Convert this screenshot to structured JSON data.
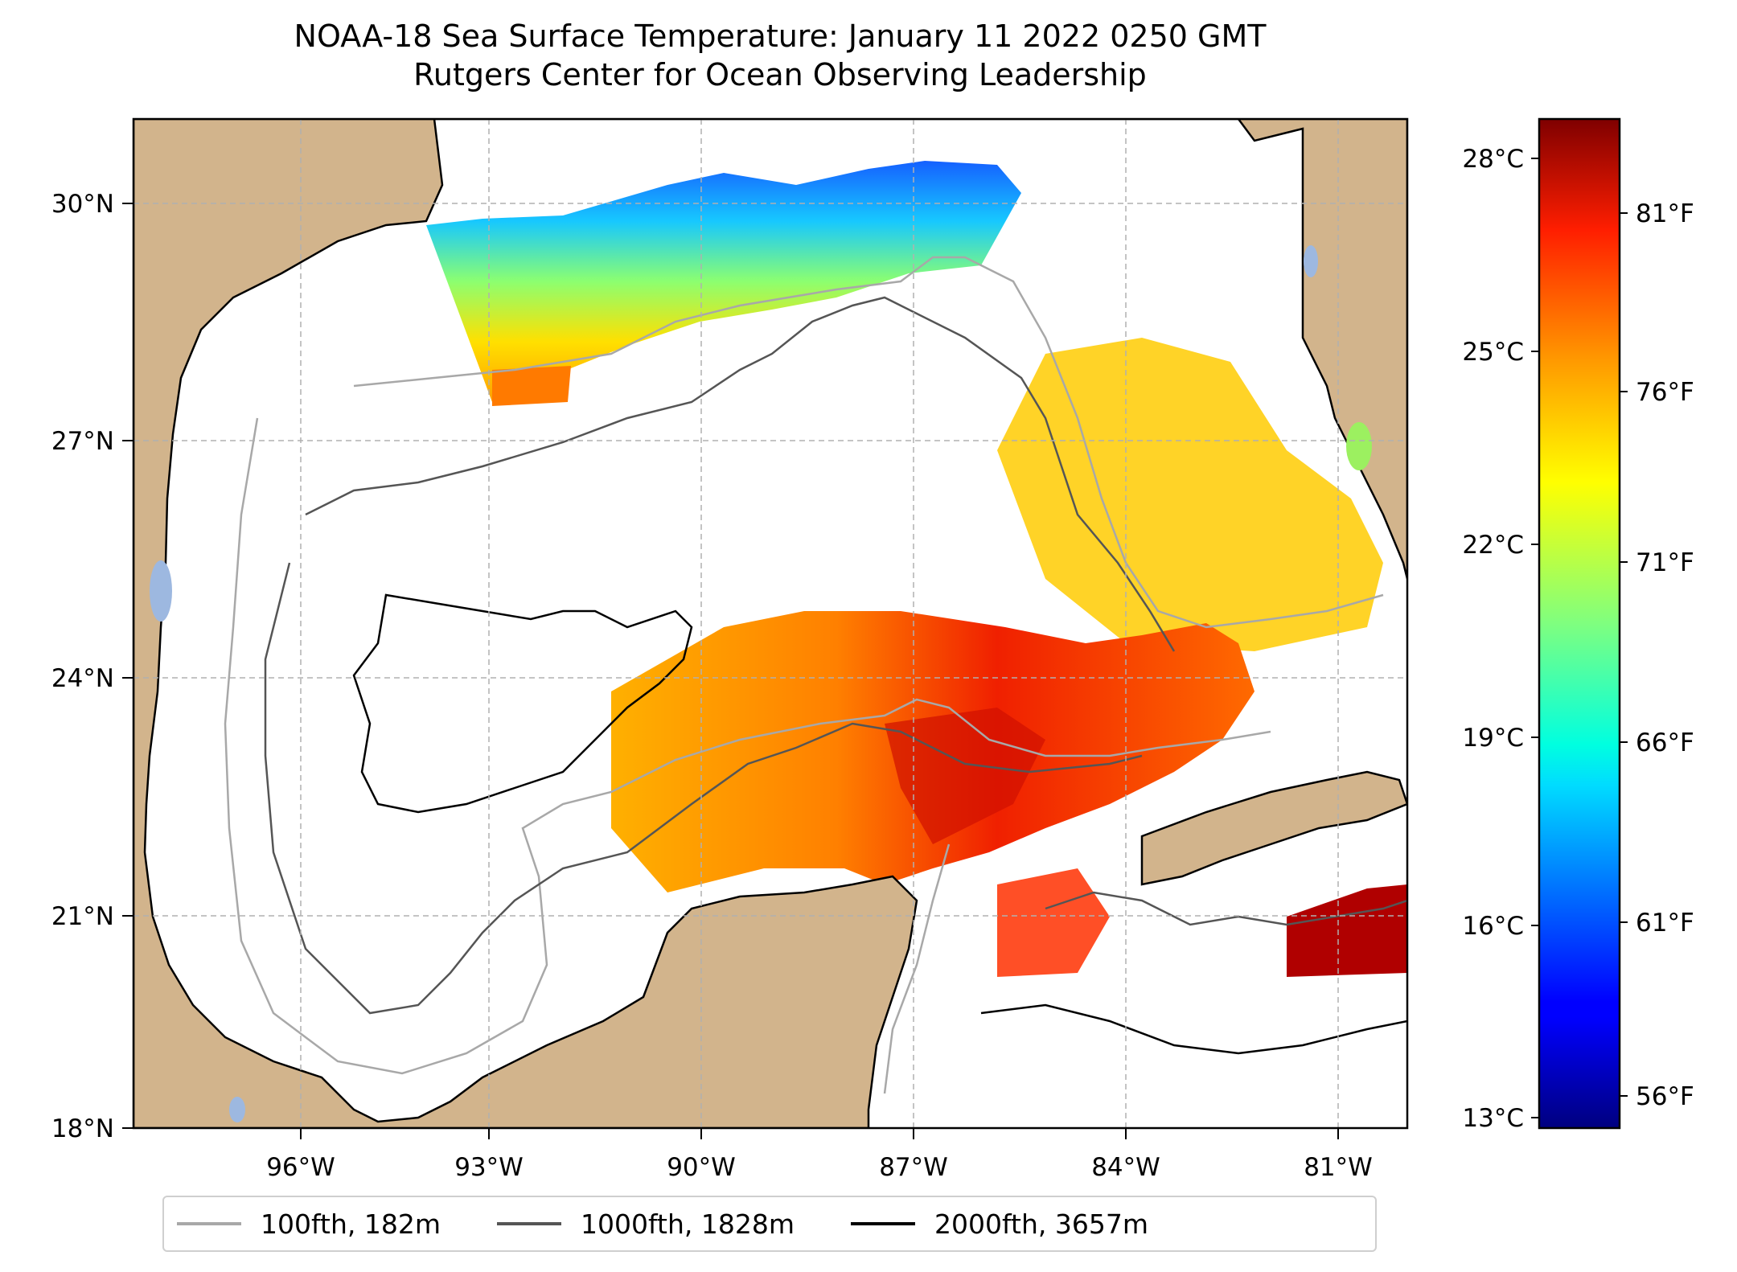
{
  "header": {
    "title": "NOAA-18 Sea Surface Temperature: January 11 2022 0250 GMT",
    "subtitle": "Rutgers Center for Ocean Observing Leadership"
  },
  "map": {
    "region": "Gulf of Mexico",
    "lon_range": [
      -98.2,
      -79.7
    ],
    "lat_range": [
      18,
      31
    ],
    "lat_ticks": [
      "30°N",
      "27°N",
      "24°N",
      "21°N",
      "18°N"
    ],
    "lon_ticks": [
      "96°W",
      "93°W",
      "90°W",
      "87°W",
      "84°W",
      "81°W"
    ],
    "colors": {
      "land": "#d2b48c",
      "ocean": "#ffffff",
      "lakes": "#9db8e0",
      "grid": "#b0b0b0"
    }
  },
  "colorbar": {
    "colormap": "jet",
    "celsius_ticks": [
      "28°C",
      "25°C",
      "22°C",
      "19°C",
      "16°C",
      "13°C"
    ],
    "fahrenheit_ticks": [
      "81°F",
      "76°F",
      "71°F",
      "66°F",
      "61°F",
      "56°F"
    ]
  },
  "legend": {
    "items": [
      {
        "label": "100fth, 182m",
        "color": "#a8a8a8"
      },
      {
        "label": "1000fth, 1828m",
        "color": "#555555"
      },
      {
        "label": "2000fth, 3657m",
        "color": "#000000"
      }
    ]
  }
}
